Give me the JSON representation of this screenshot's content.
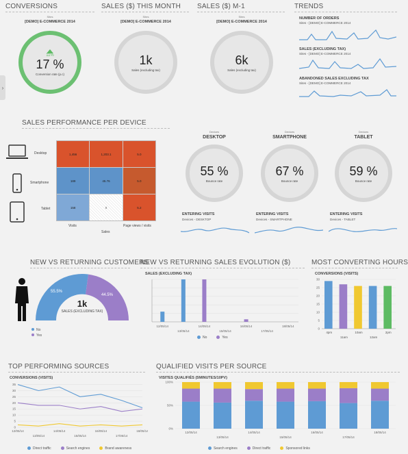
{
  "conversions": {
    "title": "CONVERSIONS",
    "sites_label": "Sites",
    "site": "[DEMO] E-COMMERCE 2014",
    "delta": "11%",
    "value": "17 %",
    "label": "Conversion rate (p.c)"
  },
  "sales_month": {
    "title": "SALES ($) THIS MONTH",
    "sites_label": "Sites",
    "site": "[DEMO] E-COMMERCE 2014",
    "value": "1k",
    "label": "Sales (excluding tax)"
  },
  "sales_m1": {
    "title": "SALES ($) M-1",
    "sites_label": "Sites",
    "site": "[DEMO] E-COMMERCE 2014",
    "value": "6k",
    "label": "Sales (excluding tax)"
  },
  "trends": {
    "title": "TRENDS",
    "items": [
      {
        "title": "NUMBER OF ORDERS",
        "sub": "Sites - [DEMO] E-COMMERCE 2014"
      },
      {
        "title": "SALES (EXCLUDING TAX)",
        "sub": "Sites - [DEMO] E-COMMERCE 2014"
      },
      {
        "title": "ABANDONED SALES EXCLUDING TAX",
        "sub": "Sites - [DEMO] E-COMMERCE 2014"
      }
    ]
  },
  "device_perf": {
    "title": "SALES PERFORMANCE PER DEVICE",
    "rows": [
      "Desktop",
      "Smartphone",
      "Tablet"
    ],
    "cols": [
      "Visits",
      "Sales",
      "Page views / visits"
    ],
    "cells": [
      [
        "1,456",
        "1,203.1",
        "5.0"
      ],
      [
        "189",
        "45.76",
        "5.0"
      ],
      [
        "158",
        "0",
        "5.2"
      ]
    ],
    "cell_colors": [
      [
        "#d9532c",
        "#d9532c",
        "#d9532c"
      ],
      [
        "#5e93c9",
        "#5e93c9",
        "#c65a2e"
      ],
      [
        "#7fa8d6",
        "#ffffff",
        "#d9532c"
      ]
    ],
    "devices": [
      {
        "devices_label": "Devices",
        "name": "DESKTOP",
        "value": "55 %",
        "label": "Bounce rate",
        "visits_title": "ENTERING VISITS",
        "visits_sub": "Devices - DESKTOP"
      },
      {
        "devices_label": "Devices",
        "name": "SMARTPHONE",
        "value": "67 %",
        "label": "Bounce rate",
        "visits_title": "ENTERING VISITS",
        "visits_sub": "Devices - SMARTPHONE"
      },
      {
        "devices_label": "Devices",
        "name": "TABLET",
        "value": "59 %",
        "label": "Bounce rate",
        "visits_title": "ENTERING VISITS",
        "visits_sub": "Devices - TABLET"
      }
    ]
  },
  "new_returning": {
    "title": "NEW VS RETURNING CUSTOMERS",
    "value": "1k",
    "label": "SALES (EXCLUDING TAX)",
    "legend": [
      "No",
      "Yes"
    ],
    "pct_no": "55.5%",
    "pct_yes": "44.5%"
  },
  "sales_evo": {
    "title": "NEW VS RETURNING SALES EVOLUTION ($)",
    "subtitle": "SALES (EXCLUDING TAX)",
    "legend": [
      "No",
      "Yes"
    ]
  },
  "hours": {
    "title": "MOST CONVERTING HOURS",
    "subtitle": "CONVERSIONS (VISITS)"
  },
  "sources": {
    "title": "TOP PERFORMING SOURCES",
    "subtitle": "CONVERSIONS (VISITS)",
    "legend": [
      "Direct traffic",
      "Search engines",
      "Brand awareness"
    ]
  },
  "qualified": {
    "title": "QUALIFIED VISITS PER SOURCE",
    "subtitle": "VISITES QUALIFIÉS (5MINUTES/10PV)",
    "legend": [
      "Search engines",
      "Direct traffic",
      "Sponsored links"
    ]
  },
  "colors": {
    "blue": "#5e9bd4",
    "purple": "#9b7ec8",
    "yellow": "#f0c830",
    "green": "#5dbb63",
    "orange": "#d9532c"
  },
  "chart_data": [
    {
      "type": "bar",
      "name": "sales-evolution",
      "categories": [
        "12/05/14",
        "13/05/14",
        "14/05/14",
        "15/05/14",
        "16/05/14",
        "17/05/14",
        "18/05/14"
      ],
      "series": [
        {
          "name": "No",
          "values": [
            120,
            500,
            0,
            0,
            0,
            0,
            0
          ]
        },
        {
          "name": "Yes",
          "values": [
            0,
            0,
            500,
            0,
            30,
            0,
            0
          ]
        }
      ]
    },
    {
      "type": "bar",
      "name": "most-converting-hours",
      "categories": [
        "4pm",
        "11am",
        "10am",
        "12am",
        "2pm"
      ],
      "x_labels": [
        "4pm",
        "11am",
        "10am",
        "12am",
        "2pm"
      ],
      "values": [
        29,
        27,
        26,
        26,
        26
      ],
      "colors": [
        "#5e9bd4",
        "#9b7ec8",
        "#f0c830",
        "#5e9bd4",
        "#5dbb63"
      ],
      "yticks": [
        0,
        5,
        10,
        15,
        20,
        25,
        30
      ],
      "ylim": [
        0,
        30
      ]
    },
    {
      "type": "line",
      "name": "top-performing-sources",
      "x": [
        "12/05/14",
        "13/05/14",
        "14/05/14",
        "15/05/14",
        "16/05/14",
        "17/05/14",
        "18/05/14"
      ],
      "series": [
        {
          "name": "Direct traffic",
          "values": [
            35,
            30,
            33,
            25,
            27,
            22,
            16
          ]
        },
        {
          "name": "Search engines",
          "values": [
            20,
            18,
            18,
            15,
            17,
            13,
            15
          ]
        },
        {
          "name": "Brand awareness",
          "values": [
            2,
            1,
            3,
            1,
            2,
            1,
            2
          ]
        }
      ],
      "yticks": [
        0,
        5,
        10,
        15,
        20,
        25,
        30,
        35
      ],
      "ylim": [
        0,
        37
      ]
    },
    {
      "type": "bar",
      "name": "qualified-visits",
      "stacked": true,
      "x": [
        "12/05/14",
        "13/05/14",
        "14/05/14",
        "15/05/14",
        "16/05/14",
        "17/05/14",
        "18/05/14"
      ],
      "series": [
        {
          "name": "Search engines",
          "values": [
            58,
            56,
            60,
            58,
            59,
            55,
            60
          ]
        },
        {
          "name": "Direct traffic",
          "values": [
            28,
            30,
            25,
            28,
            27,
            32,
            26
          ]
        },
        {
          "name": "Sponsored links",
          "values": [
            14,
            14,
            15,
            14,
            14,
            13,
            14
          ]
        }
      ],
      "yticks": [
        "0%",
        "50%",
        "100%"
      ]
    }
  ]
}
